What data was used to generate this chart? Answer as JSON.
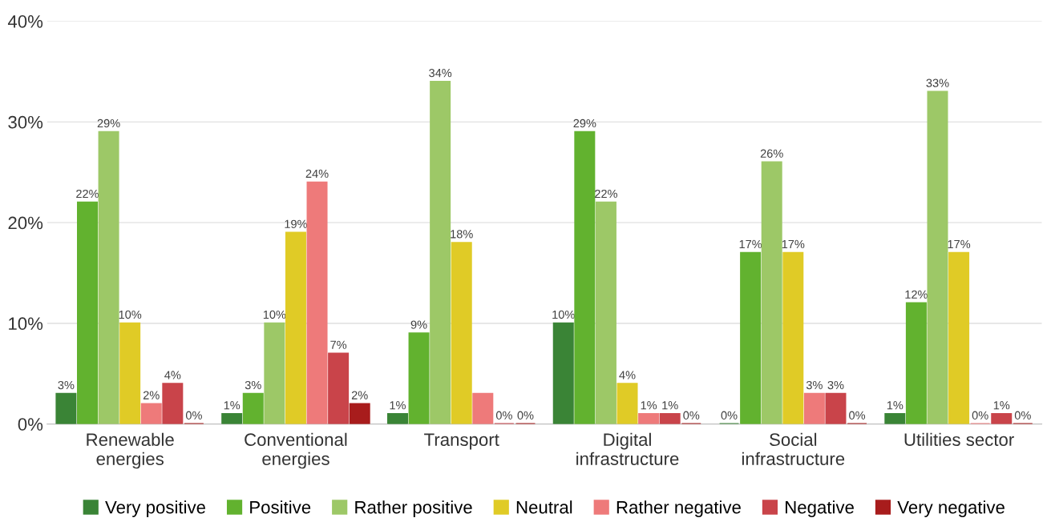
{
  "chart_data": {
    "type": "bar",
    "categories": [
      "Renewable\nenergies",
      "Conventional\nenergies",
      "Transport",
      "Digital\ninfrastructure",
      "Social\ninfrastructure",
      "Utilities sector"
    ],
    "ylim": [
      0,
      40
    ],
    "yticks": [
      {
        "value": 0,
        "label": "0%"
      },
      {
        "value": 10,
        "label": "10%"
      },
      {
        "value": 20,
        "label": "20%"
      },
      {
        "value": 30,
        "label": "30%"
      },
      {
        "value": 40,
        "label": "40%"
      }
    ],
    "grid": "y",
    "legend": "bottom",
    "series": [
      {
        "name": "Very positive",
        "color": "#3a8436",
        "values": [
          3,
          1,
          1,
          10,
          0,
          1
        ],
        "value_labels": [
          "3%",
          "1%",
          "1%",
          "10%",
          "0%",
          "1%"
        ]
      },
      {
        "name": "Positive",
        "color": "#62b22f",
        "values": [
          22,
          3,
          9,
          29,
          17,
          12
        ],
        "value_labels": [
          "22%",
          "3%",
          "9%",
          "29%",
          "17%",
          "12%"
        ]
      },
      {
        "name": "Rather positive",
        "color": "#9dc867",
        "values": [
          29,
          10,
          34,
          22,
          26,
          33
        ],
        "value_labels": [
          "29%",
          "10%",
          "34%",
          "22%",
          "26%",
          "33%"
        ]
      },
      {
        "name": "Neutral",
        "color": "#e0cb26",
        "values": [
          10,
          19,
          18,
          4,
          17,
          17
        ],
        "value_labels": [
          "10%",
          "19%",
          "18%",
          "4%",
          "17%",
          "17%"
        ]
      },
      {
        "name": "Rather negative",
        "color": "#ee7a7a",
        "values": [
          2,
          24,
          3,
          1,
          3,
          0
        ],
        "value_labels": [
          "2%",
          "24%",
          null,
          "1%",
          "3%",
          "0%"
        ]
      },
      {
        "name": "Negative",
        "color": "#c9444a",
        "values": [
          4,
          7,
          0,
          1,
          3,
          1
        ],
        "value_labels": [
          "4%",
          "7%",
          "0%",
          "1%",
          "3%",
          "1%"
        ]
      },
      {
        "name": "Very negative",
        "color": "#a81c1c",
        "values": [
          0,
          2,
          0,
          0,
          0,
          0
        ],
        "value_labels": [
          "0%",
          "2%",
          "0%",
          "0%",
          "0%",
          "0%"
        ]
      }
    ]
  }
}
